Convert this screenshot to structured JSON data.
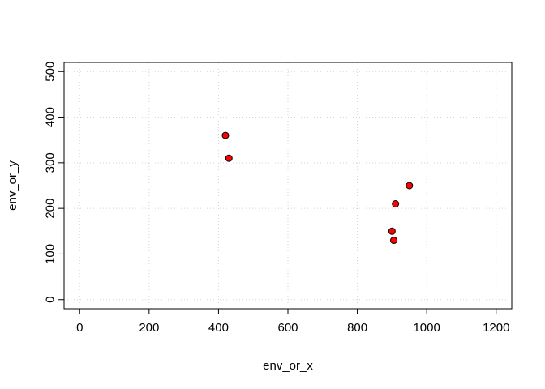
{
  "chart_data": {
    "type": "scatter",
    "title": "",
    "xlabel": "env_or_x",
    "ylabel": "env_or_y",
    "xlim": [
      -45,
      1245
    ],
    "ylim": [
      -20,
      520
    ],
    "xticks": [
      0,
      200,
      400,
      600,
      800,
      1000,
      1200
    ],
    "yticks": [
      0,
      100,
      200,
      300,
      400,
      500
    ],
    "grid": true,
    "legend": "none",
    "point_fill": "#ff0000",
    "point_stroke": "#000000",
    "points": [
      {
        "x": 420,
        "y": 360
      },
      {
        "x": 430,
        "y": 310
      },
      {
        "x": 950,
        "y": 250
      },
      {
        "x": 910,
        "y": 210
      },
      {
        "x": 900,
        "y": 150
      },
      {
        "x": 905,
        "y": 130
      }
    ]
  }
}
